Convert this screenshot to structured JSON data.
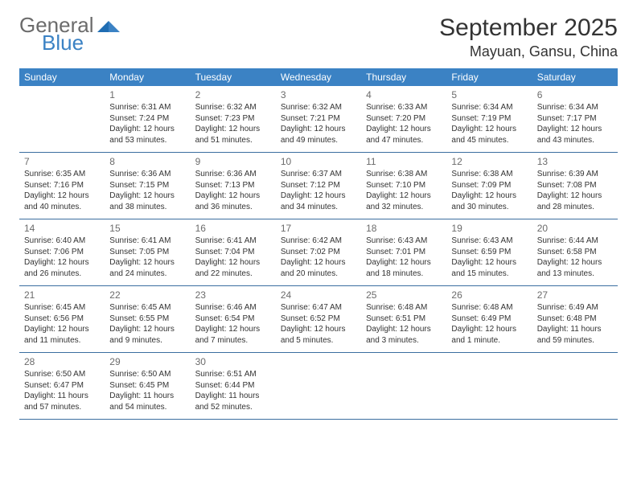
{
  "logo": {
    "word1": "General",
    "word2": "Blue"
  },
  "title": "September 2025",
  "location": "Mayuan, Gansu, China",
  "colors": {
    "header_bg": "#3b82c4",
    "header_text": "#ffffff",
    "rule": "#3b6ea0",
    "daynum": "#6b6b6b",
    "body_text": "#333333",
    "logo_gray": "#6b6b6b",
    "logo_blue": "#3b82c4",
    "background": "#ffffff"
  },
  "fonts": {
    "title_size_pt": 22,
    "location_size_pt": 14,
    "weekday_size_pt": 9,
    "daynum_size_pt": 9,
    "body_size_pt": 7.5
  },
  "weekdays": [
    "Sunday",
    "Monday",
    "Tuesday",
    "Wednesday",
    "Thursday",
    "Friday",
    "Saturday"
  ],
  "weeks": [
    [
      null,
      {
        "n": "1",
        "sr": "Sunrise: 6:31 AM",
        "ss": "Sunset: 7:24 PM",
        "d1": "Daylight: 12 hours",
        "d2": "and 53 minutes."
      },
      {
        "n": "2",
        "sr": "Sunrise: 6:32 AM",
        "ss": "Sunset: 7:23 PM",
        "d1": "Daylight: 12 hours",
        "d2": "and 51 minutes."
      },
      {
        "n": "3",
        "sr": "Sunrise: 6:32 AM",
        "ss": "Sunset: 7:21 PM",
        "d1": "Daylight: 12 hours",
        "d2": "and 49 minutes."
      },
      {
        "n": "4",
        "sr": "Sunrise: 6:33 AM",
        "ss": "Sunset: 7:20 PM",
        "d1": "Daylight: 12 hours",
        "d2": "and 47 minutes."
      },
      {
        "n": "5",
        "sr": "Sunrise: 6:34 AM",
        "ss": "Sunset: 7:19 PM",
        "d1": "Daylight: 12 hours",
        "d2": "and 45 minutes."
      },
      {
        "n": "6",
        "sr": "Sunrise: 6:34 AM",
        "ss": "Sunset: 7:17 PM",
        "d1": "Daylight: 12 hours",
        "d2": "and 43 minutes."
      }
    ],
    [
      {
        "n": "7",
        "sr": "Sunrise: 6:35 AM",
        "ss": "Sunset: 7:16 PM",
        "d1": "Daylight: 12 hours",
        "d2": "and 40 minutes."
      },
      {
        "n": "8",
        "sr": "Sunrise: 6:36 AM",
        "ss": "Sunset: 7:15 PM",
        "d1": "Daylight: 12 hours",
        "d2": "and 38 minutes."
      },
      {
        "n": "9",
        "sr": "Sunrise: 6:36 AM",
        "ss": "Sunset: 7:13 PM",
        "d1": "Daylight: 12 hours",
        "d2": "and 36 minutes."
      },
      {
        "n": "10",
        "sr": "Sunrise: 6:37 AM",
        "ss": "Sunset: 7:12 PM",
        "d1": "Daylight: 12 hours",
        "d2": "and 34 minutes."
      },
      {
        "n": "11",
        "sr": "Sunrise: 6:38 AM",
        "ss": "Sunset: 7:10 PM",
        "d1": "Daylight: 12 hours",
        "d2": "and 32 minutes."
      },
      {
        "n": "12",
        "sr": "Sunrise: 6:38 AM",
        "ss": "Sunset: 7:09 PM",
        "d1": "Daylight: 12 hours",
        "d2": "and 30 minutes."
      },
      {
        "n": "13",
        "sr": "Sunrise: 6:39 AM",
        "ss": "Sunset: 7:08 PM",
        "d1": "Daylight: 12 hours",
        "d2": "and 28 minutes."
      }
    ],
    [
      {
        "n": "14",
        "sr": "Sunrise: 6:40 AM",
        "ss": "Sunset: 7:06 PM",
        "d1": "Daylight: 12 hours",
        "d2": "and 26 minutes."
      },
      {
        "n": "15",
        "sr": "Sunrise: 6:41 AM",
        "ss": "Sunset: 7:05 PM",
        "d1": "Daylight: 12 hours",
        "d2": "and 24 minutes."
      },
      {
        "n": "16",
        "sr": "Sunrise: 6:41 AM",
        "ss": "Sunset: 7:04 PM",
        "d1": "Daylight: 12 hours",
        "d2": "and 22 minutes."
      },
      {
        "n": "17",
        "sr": "Sunrise: 6:42 AM",
        "ss": "Sunset: 7:02 PM",
        "d1": "Daylight: 12 hours",
        "d2": "and 20 minutes."
      },
      {
        "n": "18",
        "sr": "Sunrise: 6:43 AM",
        "ss": "Sunset: 7:01 PM",
        "d1": "Daylight: 12 hours",
        "d2": "and 18 minutes."
      },
      {
        "n": "19",
        "sr": "Sunrise: 6:43 AM",
        "ss": "Sunset: 6:59 PM",
        "d1": "Daylight: 12 hours",
        "d2": "and 15 minutes."
      },
      {
        "n": "20",
        "sr": "Sunrise: 6:44 AM",
        "ss": "Sunset: 6:58 PM",
        "d1": "Daylight: 12 hours",
        "d2": "and 13 minutes."
      }
    ],
    [
      {
        "n": "21",
        "sr": "Sunrise: 6:45 AM",
        "ss": "Sunset: 6:56 PM",
        "d1": "Daylight: 12 hours",
        "d2": "and 11 minutes."
      },
      {
        "n": "22",
        "sr": "Sunrise: 6:45 AM",
        "ss": "Sunset: 6:55 PM",
        "d1": "Daylight: 12 hours",
        "d2": "and 9 minutes."
      },
      {
        "n": "23",
        "sr": "Sunrise: 6:46 AM",
        "ss": "Sunset: 6:54 PM",
        "d1": "Daylight: 12 hours",
        "d2": "and 7 minutes."
      },
      {
        "n": "24",
        "sr": "Sunrise: 6:47 AM",
        "ss": "Sunset: 6:52 PM",
        "d1": "Daylight: 12 hours",
        "d2": "and 5 minutes."
      },
      {
        "n": "25",
        "sr": "Sunrise: 6:48 AM",
        "ss": "Sunset: 6:51 PM",
        "d1": "Daylight: 12 hours",
        "d2": "and 3 minutes."
      },
      {
        "n": "26",
        "sr": "Sunrise: 6:48 AM",
        "ss": "Sunset: 6:49 PM",
        "d1": "Daylight: 12 hours",
        "d2": "and 1 minute."
      },
      {
        "n": "27",
        "sr": "Sunrise: 6:49 AM",
        "ss": "Sunset: 6:48 PM",
        "d1": "Daylight: 11 hours",
        "d2": "and 59 minutes."
      }
    ],
    [
      {
        "n": "28",
        "sr": "Sunrise: 6:50 AM",
        "ss": "Sunset: 6:47 PM",
        "d1": "Daylight: 11 hours",
        "d2": "and 57 minutes."
      },
      {
        "n": "29",
        "sr": "Sunrise: 6:50 AM",
        "ss": "Sunset: 6:45 PM",
        "d1": "Daylight: 11 hours",
        "d2": "and 54 minutes."
      },
      {
        "n": "30",
        "sr": "Sunrise: 6:51 AM",
        "ss": "Sunset: 6:44 PM",
        "d1": "Daylight: 11 hours",
        "d2": "and 52 minutes."
      },
      null,
      null,
      null,
      null
    ]
  ]
}
